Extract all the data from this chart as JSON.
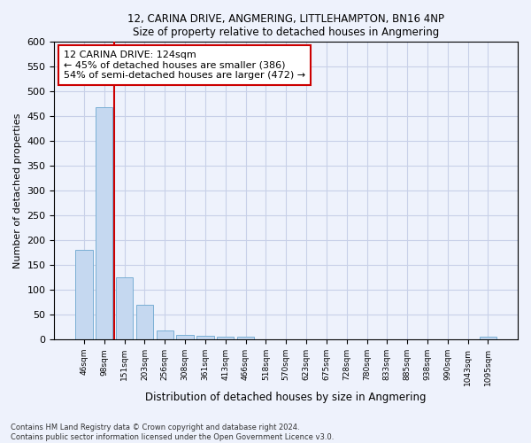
{
  "title1": "12, CARINA DRIVE, ANGMERING, LITTLEHAMPTON, BN16 4NP",
  "title2": "Size of property relative to detached houses in Angmering",
  "xlabel": "Distribution of detached houses by size in Angmering",
  "ylabel": "Number of detached properties",
  "categories": [
    "46sqm",
    "98sqm",
    "151sqm",
    "203sqm",
    "256sqm",
    "308sqm",
    "361sqm",
    "413sqm",
    "466sqm",
    "518sqm",
    "570sqm",
    "623sqm",
    "675sqm",
    "728sqm",
    "780sqm",
    "833sqm",
    "885sqm",
    "938sqm",
    "990sqm",
    "1043sqm",
    "1095sqm"
  ],
  "values": [
    180,
    468,
    126,
    70,
    18,
    10,
    7,
    5,
    5,
    0,
    0,
    0,
    0,
    0,
    0,
    0,
    0,
    0,
    0,
    0,
    5
  ],
  "bar_color": "#c5d8f0",
  "bar_edge_color": "#7aafd4",
  "vline_color": "#cc0000",
  "vline_x": 1.5,
  "annotation_text": "12 CARINA DRIVE: 124sqm\n← 45% of detached houses are smaller (386)\n54% of semi-detached houses are larger (472) →",
  "annotation_box_color": "#ffffff",
  "annotation_box_edge": "#cc0000",
  "ylim": [
    0,
    600
  ],
  "yticks": [
    0,
    50,
    100,
    150,
    200,
    250,
    300,
    350,
    400,
    450,
    500,
    550,
    600
  ],
  "footer": "Contains HM Land Registry data © Crown copyright and database right 2024.\nContains public sector information licensed under the Open Government Licence v3.0.",
  "bg_color": "#eef2fc",
  "plot_bg_color": "#eef2fc",
  "grid_color": "#c8d0e8"
}
